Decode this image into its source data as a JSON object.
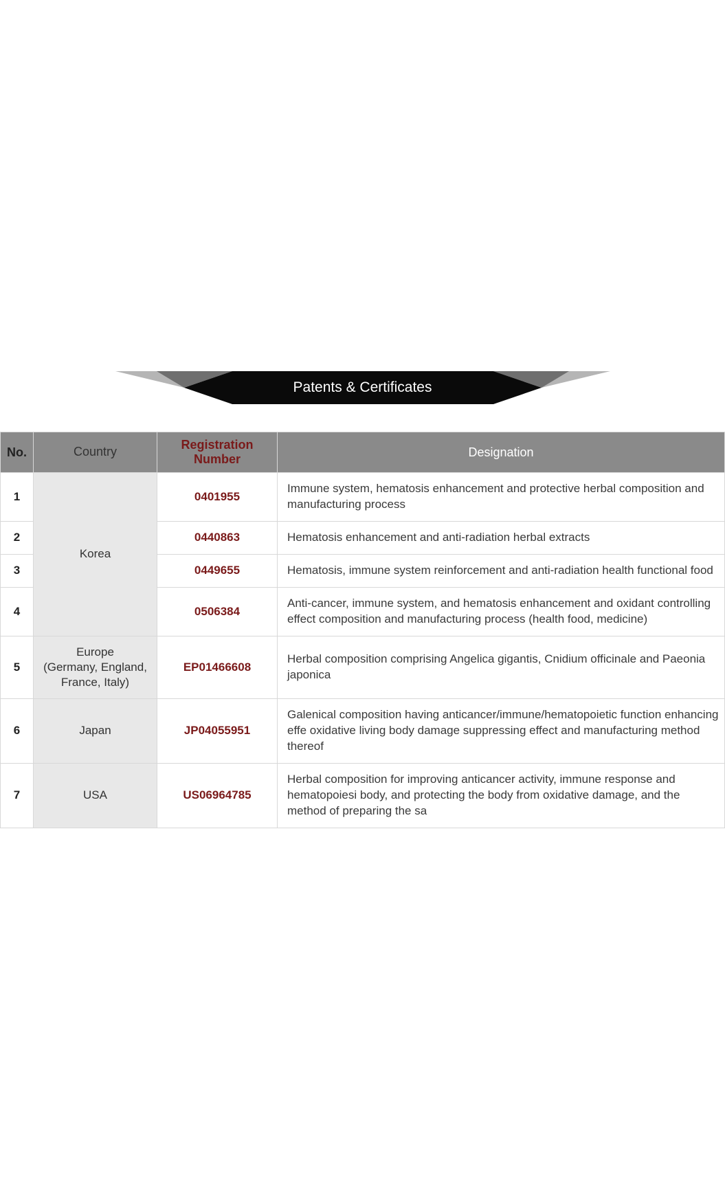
{
  "title": "Patents & Certificates",
  "banner": {
    "center_fill": "#0a0a0a",
    "tri_outer_fill": "#b5b5b5",
    "tri_inner_fill": "#6f6f6f",
    "text_color": "#ffffff",
    "title_fontsize": 21
  },
  "table": {
    "header_bg": "#8a8a8a",
    "header_text_color": "#ffffff",
    "border_color": "#d8d8d8",
    "country_bg": "#e8e8e8",
    "reg_color": "#7a1a1a",
    "body_text_color": "#3a3a3a",
    "fontsize_header": 18,
    "fontsize_body": 17,
    "columns": [
      "No.",
      "Country",
      "Registration Number",
      "Designation"
    ],
    "rows": [
      {
        "no": "1",
        "country": "Korea",
        "country_rowspan": 4,
        "reg": "0401955",
        "desig": "Immune system, hematosis enhancement and protective herbal composition and manufacturing process"
      },
      {
        "no": "2",
        "reg": "0440863",
        "desig": "Hematosis enhancement and anti-radiation herbal extracts"
      },
      {
        "no": "3",
        "reg": "0449655",
        "desig": "Hematosis, immune system reinforcement and anti-radiation health functional food"
      },
      {
        "no": "4",
        "reg": "0506384",
        "desig": "Anti-cancer, immune system, and hematosis enhancement and oxidant controlling effect composition and manufacturing process (health food, medicine)"
      },
      {
        "no": "5",
        "country": "Europe\n(Germany, England,\nFrance, Italy)",
        "country_rowspan": 1,
        "reg": "EP01466608",
        "desig": "Herbal composition comprising Angelica gigantis, Cnidium officinale and Paeonia japonica"
      },
      {
        "no": "6",
        "country": "Japan",
        "country_rowspan": 1,
        "reg": "JP04055951",
        "desig": "Galenical composition having anticancer/immune/hematopoietic function enhancing effe oxidative living body damage suppressing effect and manufacturing method thereof"
      },
      {
        "no": "7",
        "country": "USA",
        "country_rowspan": 1,
        "reg": "US06964785",
        "desig": "Herbal composition for improving anticancer activity, immune response and hematopoiesi body, and protecting the body from oxidative damage, and the method of preparing the sa"
      }
    ]
  }
}
